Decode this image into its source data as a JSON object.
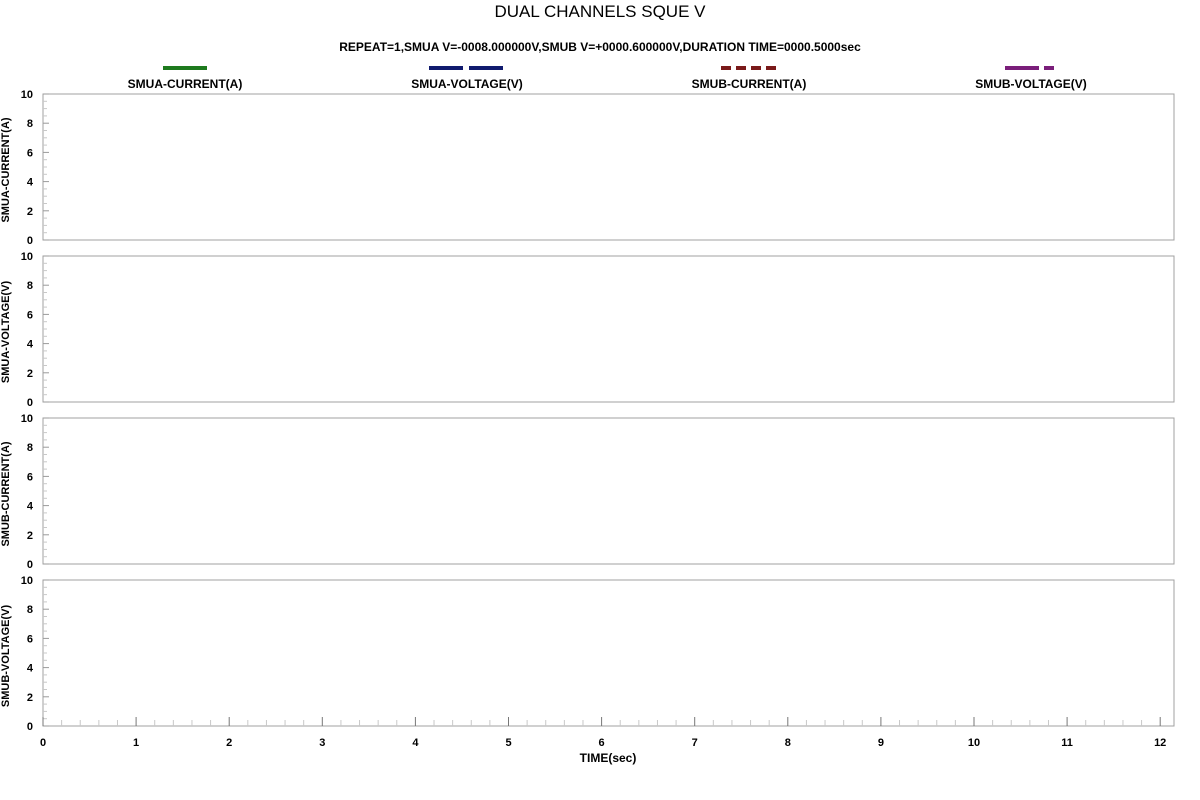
{
  "chart_data": {
    "type": "line",
    "title": "DUAL CHANNELS SQUE V",
    "subtitle": "REPEAT=1,SMUA V=-0008.000000V,SMUB V=+0000.600000V,DURATION TIME=0000.5000sec",
    "xlabel": "TIME(sec)",
    "xlim": [
      0,
      12
    ],
    "x_ticks": [
      "0",
      "1",
      "2",
      "3",
      "4",
      "5",
      "6",
      "7",
      "8",
      "9",
      "10",
      "11",
      "12"
    ],
    "legend_position": "top",
    "legend": [
      {
        "name": "SMUA-CURRENT(A)",
        "color": "#1e7a1e",
        "style": "solid"
      },
      {
        "name": "SMUA-VOLTAGE(V)",
        "color": "#101a6e",
        "style": "dash"
      },
      {
        "name": "SMUB-CURRENT(A)",
        "color": "#7a1a1a",
        "style": "dot"
      },
      {
        "name": "SMUB-VOLTAGE(V)",
        "color": "#7a1e7a",
        "style": "dashdot"
      }
    ],
    "panels": [
      {
        "ylabel": "SMUA-CURRENT(A)",
        "ylim": [
          0,
          10
        ],
        "y_ticks": [
          "0",
          "2",
          "4",
          "6",
          "8",
          "10"
        ],
        "series": {
          "name": "SMUA-CURRENT(A)",
          "values": []
        }
      },
      {
        "ylabel": "SMUA-VOLTAGE(V)",
        "ylim": [
          0,
          10
        ],
        "y_ticks": [
          "0",
          "2",
          "4",
          "6",
          "8",
          "10"
        ],
        "series": {
          "name": "SMUA-VOLTAGE(V)",
          "values": []
        }
      },
      {
        "ylabel": "SMUB-CURRENT(A)",
        "ylim": [
          0,
          10
        ],
        "y_ticks": [
          "0",
          "2",
          "4",
          "6",
          "8",
          "10"
        ],
        "series": {
          "name": "SMUB-CURRENT(A)",
          "values": []
        }
      },
      {
        "ylabel": "SMUB-VOLTAGE(V)",
        "ylim": [
          0,
          10
        ],
        "y_ticks": [
          "0",
          "2",
          "4",
          "6",
          "8",
          "10"
        ],
        "series": {
          "name": "SMUB-VOLTAGE(V)",
          "values": []
        }
      }
    ]
  }
}
